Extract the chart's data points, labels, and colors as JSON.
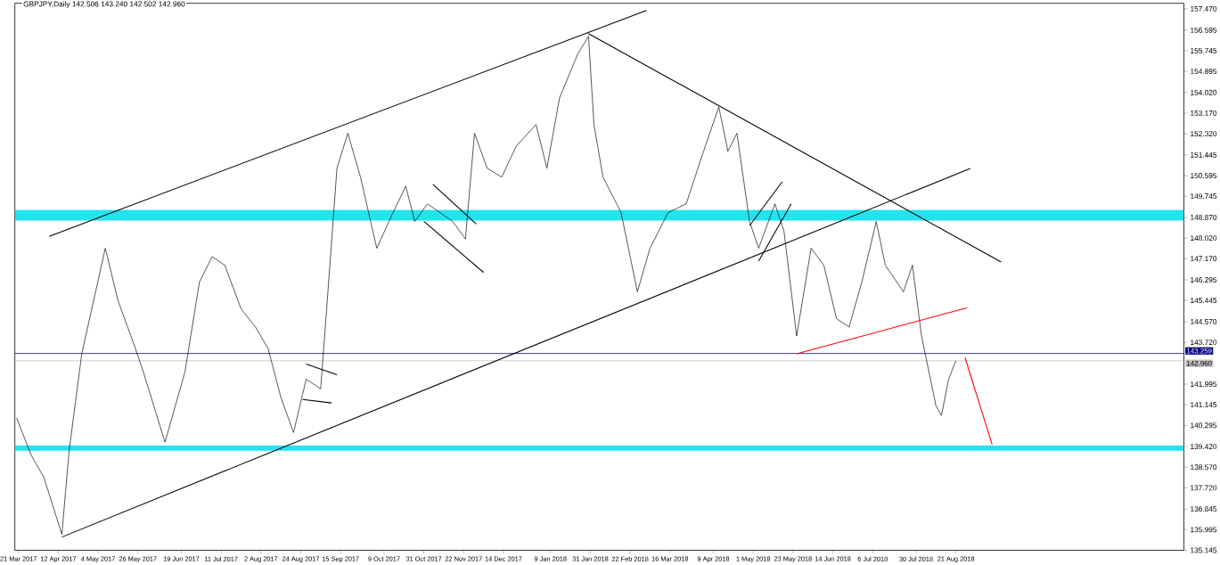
{
  "chart_data": {
    "type": "line",
    "title": "GBPJPY,Daily 142.506 143.240 142.502 142.960",
    "xlim": [
      "2017-03-19",
      "2018-12-25"
    ],
    "ylim": [
      135.145,
      157.7
    ],
    "xticks": [
      {
        "value": "2017-03-21",
        "label": "21 Mar 2017"
      },
      {
        "value": "2017-04-12",
        "label": "12 Apr 2017"
      },
      {
        "value": "2017-05-04",
        "label": "4 May 2017"
      },
      {
        "value": "2017-05-26",
        "label": "26 May 2017"
      },
      {
        "value": "2017-06-19",
        "label": "19 Jun 2017"
      },
      {
        "value": "2017-07-11",
        "label": "11 Jul 2017"
      },
      {
        "value": "2017-08-02",
        "label": "2 Aug 2017"
      },
      {
        "value": "2017-08-24",
        "label": "24 Aug 2017"
      },
      {
        "value": "2017-09-15",
        "label": "15 Sep 2017"
      },
      {
        "value": "2017-10-09",
        "label": "9 Oct 2017"
      },
      {
        "value": "2017-10-31",
        "label": "31 Oct 2017"
      },
      {
        "value": "2017-11-22",
        "label": "22 Nov 2017"
      },
      {
        "value": "2017-12-14",
        "label": "14 Dec 2017"
      },
      {
        "value": "2018-01-09",
        "label": "9 Jan 2018"
      },
      {
        "value": "2018-01-31",
        "label": "31 Jan 2018"
      },
      {
        "value": "2018-02-22",
        "label": "22 Feb 2018"
      },
      {
        "value": "2018-03-16",
        "label": "16 Mar 2018"
      },
      {
        "value": "2018-04-09",
        "label": "9 Apr 2018"
      },
      {
        "value": "2018-05-01",
        "label": "1 May 2018"
      },
      {
        "value": "2018-05-23",
        "label": "23 May 2018"
      },
      {
        "value": "2018-06-14",
        "label": "14 Jun 2018"
      },
      {
        "value": "2018-07-06",
        "label": "6 Jul 2018"
      },
      {
        "value": "2018-07-30",
        "label": "30 Jul 2018"
      },
      {
        "value": "2018-08-21",
        "label": "21 Aug 2018"
      }
    ],
    "yticks": [
      {
        "value": 157.47,
        "label": "157.470"
      },
      {
        "value": 156.595,
        "label": "156.595"
      },
      {
        "value": 155.745,
        "label": "155.745"
      },
      {
        "value": 154.895,
        "label": "154.895"
      },
      {
        "value": 154.02,
        "label": "154.020"
      },
      {
        "value": 153.17,
        "label": "153.170"
      },
      {
        "value": 152.32,
        "label": "152.320"
      },
      {
        "value": 151.445,
        "label": "151.445"
      },
      {
        "value": 150.595,
        "label": "150.595"
      },
      {
        "value": 149.745,
        "label": "149.745"
      },
      {
        "value": 148.87,
        "label": "148.870"
      },
      {
        "value": 148.02,
        "label": "148.020"
      },
      {
        "value": 147.17,
        "label": "147.170"
      },
      {
        "value": 146.295,
        "label": "146.295"
      },
      {
        "value": 145.445,
        "label": "145.445"
      },
      {
        "value": 144.57,
        "label": "144.570"
      },
      {
        "value": 143.72,
        "label": "143.720"
      },
      {
        "value": 141.995,
        "label": "141.995"
      },
      {
        "value": 141.145,
        "label": "141.145"
      },
      {
        "value": 140.295,
        "label": "140.295"
      },
      {
        "value": 139.42,
        "label": "139.420"
      },
      {
        "value": 138.57,
        "label": "138.570"
      },
      {
        "value": 137.72,
        "label": "137.720"
      },
      {
        "value": 136.845,
        "label": "136.845"
      },
      {
        "value": 135.995,
        "label": "135.995"
      },
      {
        "value": 135.145,
        "label": "135.145"
      }
    ],
    "grid": false,
    "bands": [
      {
        "axis": "y",
        "from": 148.74,
        "to": 149.18,
        "color": "#22e4ee"
      },
      {
        "axis": "y",
        "from": 139.25,
        "to": 139.47,
        "color": "#22e4ee"
      }
    ],
    "ref_lines": [
      {
        "axis": "y",
        "value": 143.259,
        "label": "143.259",
        "color": "#000080"
      },
      {
        "axis": "y",
        "value": 142.96,
        "label": "142.960",
        "color": "#c0c0c0"
      }
    ],
    "series": [
      {
        "color": "#000000",
        "x": [
          "2017-03-20",
          "2017-03-28",
          "2017-04-04",
          "2017-04-14",
          "2017-04-18",
          "2017-04-25",
          "2017-05-08",
          "2017-05-15",
          "2017-05-24",
          "2017-05-29",
          "2017-06-10",
          "2017-06-21",
          "2017-06-29",
          "2017-07-06",
          "2017-07-13",
          "2017-07-22",
          "2017-07-30",
          "2017-08-06",
          "2017-08-13",
          "2017-08-20",
          "2017-08-27",
          "2017-09-04",
          "2017-09-08",
          "2017-09-13",
          "2017-09-19",
          "2017-09-26",
          "2017-10-05",
          "2017-10-14",
          "2017-10-21",
          "2017-10-26",
          "2017-11-02",
          "2017-11-16",
          "2017-11-23",
          "2017-11-28",
          "2017-12-05",
          "2017-12-13",
          "2017-12-21",
          "2018-01-01",
          "2018-01-07",
          "2018-01-14",
          "2018-01-24",
          "2018-01-30",
          "2018-02-02",
          "2018-02-07",
          "2018-02-17",
          "2018-02-26",
          "2018-03-05",
          "2018-03-15",
          "2018-03-25",
          "2018-04-02",
          "2018-04-12",
          "2018-04-17",
          "2018-04-22",
          "2018-04-29",
          "2018-05-04",
          "2018-05-13",
          "2018-05-18",
          "2018-05-25",
          "2018-06-02",
          "2018-06-09",
          "2018-06-16",
          "2018-06-23",
          "2018-06-30",
          "2018-07-08",
          "2018-07-13",
          "2018-07-23",
          "2018-07-28",
          "2018-08-02",
          "2018-08-10",
          "2018-08-13",
          "2018-08-17",
          "2018-08-21"
        ],
        "values": [
          140.6,
          139.07,
          138.16,
          135.8,
          139.25,
          143.25,
          147.6,
          145.44,
          143.6,
          142.5,
          139.6,
          142.5,
          146.2,
          147.25,
          146.9,
          145.1,
          144.35,
          143.45,
          141.45,
          140.0,
          142.2,
          141.8,
          145.8,
          150.9,
          152.34,
          150.53,
          147.6,
          149.07,
          150.16,
          148.7,
          149.43,
          148.7,
          147.98,
          152.34,
          150.9,
          150.53,
          151.8,
          152.7,
          150.9,
          153.8,
          155.6,
          156.34,
          152.7,
          150.53,
          149.07,
          145.8,
          147.6,
          149.07,
          149.43,
          151.25,
          153.43,
          151.6,
          152.34,
          148.7,
          147.6,
          149.43,
          148.3,
          143.98,
          147.6,
          146.9,
          144.7,
          144.35,
          146.2,
          148.7,
          146.9,
          145.8,
          146.9,
          143.98,
          141.1,
          140.7,
          142.2,
          142.96
        ]
      },
      {
        "color": "#000000",
        "x": [
          "2017-04-07",
          "2018-03-03"
        ],
        "values": [
          148.09,
          157.4
        ]
      },
      {
        "color": "#000000",
        "x": [
          "2017-04-14",
          "2018-08-29"
        ],
        "values": [
          135.69,
          150.89
        ]
      },
      {
        "color": "#000000",
        "x": [
          "2018-01-30",
          "2018-09-15"
        ],
        "values": [
          156.45,
          147.03
        ]
      },
      {
        "color": "#000000",
        "x": [
          "2017-08-27",
          "2017-09-13"
        ],
        "values": [
          142.82,
          142.38
        ]
      },
      {
        "color": "#000000",
        "x": [
          "2017-08-25",
          "2017-09-10"
        ],
        "values": [
          141.36,
          141.22
        ]
      },
      {
        "color": "#000000",
        "x": [
          "2017-11-05",
          "2017-11-29"
        ],
        "values": [
          150.23,
          148.6
        ]
      },
      {
        "color": "#000000",
        "x": [
          "2017-10-31",
          "2017-12-03"
        ],
        "values": [
          148.71,
          146.6
        ]
      },
      {
        "color": "#000000",
        "x": [
          "2018-04-29",
          "2018-05-17"
        ],
        "values": [
          148.53,
          150.34
        ]
      },
      {
        "color": "#000000",
        "x": [
          "2018-05-04",
          "2018-05-22"
        ],
        "values": [
          147.07,
          149.43
        ]
      },
      {
        "color": "#ff0000",
        "x": [
          "2018-05-25",
          "2018-08-27"
        ],
        "values": [
          143.25,
          145.14
        ]
      },
      {
        "color": "#ff0000",
        "x": [
          "2018-08-26",
          "2018-09-10"
        ],
        "values": [
          143.1,
          139.51
        ]
      }
    ]
  }
}
